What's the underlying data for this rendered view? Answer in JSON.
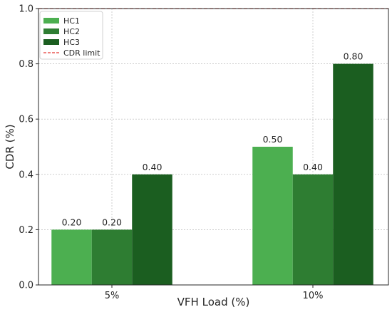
{
  "chart_data": {
    "type": "bar",
    "xlabel": "VFH Load (%)",
    "ylabel": "CDR (%)",
    "categories": [
      "5%",
      "10%"
    ],
    "series": [
      {
        "name": "HC1",
        "values": [
          0.2,
          0.5
        ],
        "color": "#4caf50"
      },
      {
        "name": "HC2",
        "values": [
          0.2,
          0.4
        ],
        "color": "#2e7d32"
      },
      {
        "name": "HC3",
        "values": [
          0.4,
          0.8
        ],
        "color": "#1b5e20"
      }
    ],
    "value_labels": [
      [
        "0.20",
        "0.50"
      ],
      [
        "0.20",
        "0.40"
      ],
      [
        "0.40",
        "0.80"
      ]
    ],
    "reference_line": {
      "name": "CDR limit",
      "value": 1.0,
      "color": "#e53935",
      "style": "dashed"
    },
    "ylim": [
      0,
      1.0
    ],
    "yticks": [
      0.0,
      0.2,
      0.4,
      0.6,
      0.8,
      1.0
    ],
    "ytick_labels": [
      "0.0",
      "0.2",
      "0.4",
      "0.6",
      "0.8",
      "1.0"
    ],
    "grid": true,
    "legend_position": "top-left"
  }
}
